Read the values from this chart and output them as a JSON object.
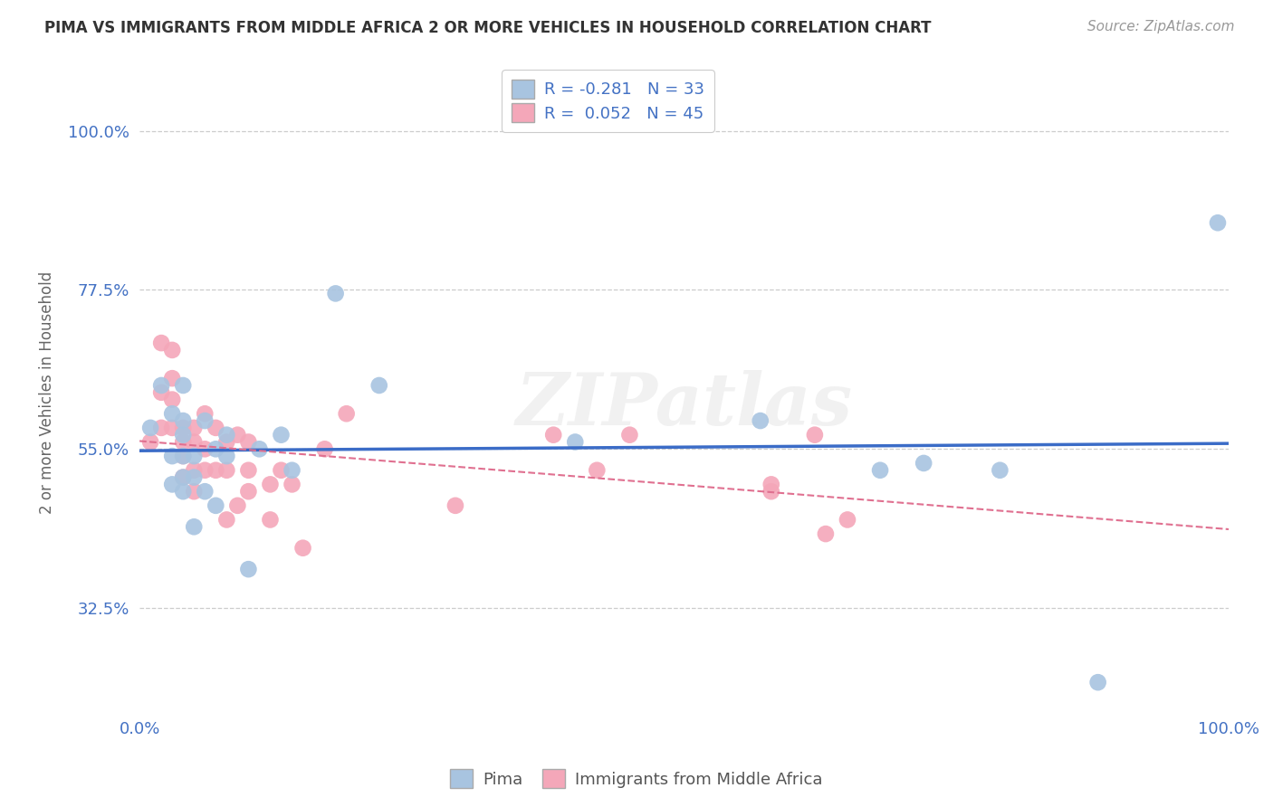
{
  "title": "PIMA VS IMMIGRANTS FROM MIDDLE AFRICA 2 OR MORE VEHICLES IN HOUSEHOLD CORRELATION CHART",
  "source": "Source: ZipAtlas.com",
  "ylabel": "2 or more Vehicles in Household",
  "xlim": [
    0.0,
    1.0
  ],
  "ylim": [
    0.18,
    1.08
  ],
  "yticks": [
    0.325,
    0.55,
    0.775,
    1.0
  ],
  "ytick_labels": [
    "32.5%",
    "55.0%",
    "77.5%",
    "100.0%"
  ],
  "pima_color": "#a8c4e0",
  "immigrants_color": "#f4a7b9",
  "pima_line_color": "#3b6cc7",
  "immigrants_line_color": "#e07090",
  "legend_pima_label": "R = -0.281   N = 33",
  "legend_immigrants_label": "R =  0.052   N = 45",
  "watermark": "ZIPatlas",
  "pima_scatter_x": [
    0.01,
    0.02,
    0.03,
    0.03,
    0.03,
    0.04,
    0.04,
    0.04,
    0.04,
    0.04,
    0.04,
    0.05,
    0.05,
    0.05,
    0.06,
    0.06,
    0.07,
    0.07,
    0.08,
    0.08,
    0.1,
    0.11,
    0.13,
    0.14,
    0.18,
    0.22,
    0.4,
    0.57,
    0.68,
    0.72,
    0.79,
    0.88,
    0.99
  ],
  "pima_scatter_y": [
    0.58,
    0.64,
    0.5,
    0.54,
    0.6,
    0.49,
    0.51,
    0.54,
    0.57,
    0.59,
    0.64,
    0.44,
    0.51,
    0.54,
    0.49,
    0.59,
    0.47,
    0.55,
    0.54,
    0.57,
    0.38,
    0.55,
    0.57,
    0.52,
    0.77,
    0.64,
    0.56,
    0.59,
    0.52,
    0.53,
    0.52,
    0.22,
    0.87
  ],
  "immigrants_scatter_x": [
    0.01,
    0.02,
    0.02,
    0.02,
    0.03,
    0.03,
    0.03,
    0.03,
    0.04,
    0.04,
    0.04,
    0.04,
    0.05,
    0.05,
    0.05,
    0.05,
    0.06,
    0.06,
    0.06,
    0.07,
    0.07,
    0.08,
    0.08,
    0.08,
    0.09,
    0.09,
    0.1,
    0.1,
    0.1,
    0.12,
    0.12,
    0.13,
    0.14,
    0.15,
    0.17,
    0.19,
    0.29,
    0.38,
    0.42,
    0.45,
    0.58,
    0.58,
    0.62,
    0.63,
    0.65
  ],
  "immigrants_scatter_y": [
    0.56,
    0.7,
    0.63,
    0.58,
    0.58,
    0.62,
    0.65,
    0.69,
    0.51,
    0.54,
    0.56,
    0.58,
    0.49,
    0.52,
    0.56,
    0.58,
    0.52,
    0.55,
    0.6,
    0.52,
    0.58,
    0.45,
    0.52,
    0.56,
    0.47,
    0.57,
    0.49,
    0.52,
    0.56,
    0.45,
    0.5,
    0.52,
    0.5,
    0.41,
    0.55,
    0.6,
    0.47,
    0.57,
    0.52,
    0.57,
    0.49,
    0.5,
    0.57,
    0.43,
    0.45
  ]
}
